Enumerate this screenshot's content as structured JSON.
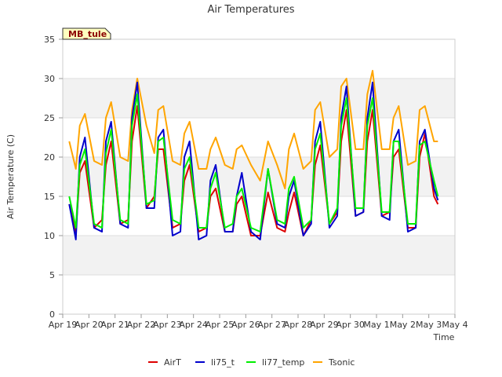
{
  "chart_data": {
    "type": "line",
    "title": "Air Temperatures",
    "xlabel": "Time",
    "ylabel": "Air Temperature (C)",
    "badge": "MB_tule",
    "ylim": [
      0,
      35
    ],
    "yticks": [
      0,
      5,
      10,
      15,
      20,
      25,
      30,
      35
    ],
    "xlim": [
      0,
      15
    ],
    "xticks": [
      {
        "x": 0,
        "label": "Apr 19"
      },
      {
        "x": 1,
        "label": "Apr 20"
      },
      {
        "x": 2,
        "label": "Apr 21"
      },
      {
        "x": 3,
        "label": "Apr 22"
      },
      {
        "x": 4,
        "label": "Apr 23"
      },
      {
        "x": 5,
        "label": "Apr 24"
      },
      {
        "x": 6,
        "label": "Apr 25"
      },
      {
        "x": 7,
        "label": "Apr 26"
      },
      {
        "x": 8,
        "label": "Apr 27"
      },
      {
        "x": 9,
        "label": "Apr 28"
      },
      {
        "x": 10,
        "label": "Apr 29"
      },
      {
        "x": 11,
        "label": "Apr 30"
      },
      {
        "x": 12,
        "label": "May 1"
      },
      {
        "x": 13,
        "label": "May 2"
      },
      {
        "x": 14,
        "label": "May 3"
      },
      {
        "x": 15,
        "label": "May 4"
      }
    ],
    "grid": true,
    "legend_position": "bottom",
    "x_unit": "days since Apr 19",
    "series": [
      {
        "name": "AirT",
        "color": "#dd0000",
        "x": [
          0.25,
          0.5,
          0.65,
          0.85,
          1.2,
          1.5,
          1.65,
          1.85,
          2.2,
          2.5,
          2.65,
          2.85,
          3.2,
          3.5,
          3.65,
          3.85,
          4.2,
          4.5,
          4.65,
          4.85,
          5.2,
          5.5,
          5.65,
          5.85,
          6.2,
          6.5,
          6.65,
          6.85,
          7.2,
          7.55,
          7.85,
          8.2,
          8.5,
          8.65,
          8.85,
          9.2,
          9.5,
          9.65,
          9.85,
          10.2,
          10.5,
          10.65,
          10.85,
          11.2,
          11.5,
          11.65,
          11.85,
          12.2,
          12.5,
          12.65,
          12.85,
          13.2,
          13.5,
          13.65,
          13.85,
          14.2,
          14.35
        ],
        "y": [
          14,
          10.5,
          18,
          19.5,
          11,
          12,
          19,
          22,
          11.5,
          12,
          22,
          26.5,
          13.5,
          15,
          21,
          21,
          11,
          11.5,
          17,
          19,
          10.5,
          11,
          15,
          16,
          10.5,
          10.5,
          14,
          15,
          10,
          10,
          15.5,
          11,
          10.5,
          13,
          15.5,
          10,
          12,
          19,
          21.5,
          11.5,
          13,
          22,
          26,
          12.5,
          13,
          22,
          26,
          12.5,
          13,
          20,
          21,
          11,
          11,
          20,
          23,
          15,
          14
        ]
      },
      {
        "name": "li75_t",
        "color": "#0000cc",
        "x": [
          0.25,
          0.5,
          0.65,
          0.85,
          1.2,
          1.5,
          1.65,
          1.85,
          2.2,
          2.5,
          2.65,
          2.85,
          3.2,
          3.5,
          3.65,
          3.85,
          4.2,
          4.5,
          4.65,
          4.85,
          5.2,
          5.5,
          5.65,
          5.85,
          6.2,
          6.5,
          6.65,
          6.85,
          7.2,
          7.55,
          7.85,
          8.2,
          8.5,
          8.65,
          8.85,
          9.2,
          9.5,
          9.65,
          9.85,
          10.2,
          10.5,
          10.65,
          10.85,
          11.2,
          11.5,
          11.65,
          11.85,
          12.2,
          12.5,
          12.65,
          12.85,
          13.2,
          13.5,
          13.65,
          13.85,
          14.2,
          14.35
        ],
        "y": [
          14,
          9.5,
          20,
          22.5,
          11,
          10.5,
          22,
          24.5,
          11.5,
          11,
          25,
          29.5,
          13.5,
          13.5,
          22.5,
          23.5,
          10,
          10.5,
          20,
          22,
          9.5,
          10,
          17,
          19,
          10.5,
          10.5,
          15,
          18,
          10.5,
          9.5,
          18.5,
          11.5,
          11,
          15,
          17,
          10,
          11.5,
          22,
          24.5,
          11,
          12.5,
          25,
          29,
          12.5,
          13,
          25,
          29.5,
          12.5,
          12,
          22,
          23.5,
          10.5,
          11,
          22,
          23.5,
          16,
          14.5
        ]
      },
      {
        "name": "li77_temp",
        "color": "#00ee00",
        "x": [
          0.25,
          0.5,
          0.65,
          0.85,
          1.2,
          1.5,
          1.65,
          1.85,
          2.2,
          2.5,
          2.65,
          2.85,
          3.2,
          3.5,
          3.65,
          3.85,
          4.2,
          4.5,
          4.65,
          4.85,
          5.2,
          5.5,
          5.65,
          5.85,
          6.2,
          6.5,
          6.65,
          6.85,
          7.2,
          7.55,
          7.85,
          8.2,
          8.5,
          8.65,
          8.85,
          9.2,
          9.5,
          9.65,
          9.85,
          10.2,
          10.5,
          10.65,
          10.85,
          11.2,
          11.5,
          11.65,
          11.85,
          12.2,
          12.5,
          12.65,
          12.85,
          13.2,
          13.5,
          13.65,
          13.85,
          14.2,
          14.35
        ],
        "y": [
          15,
          11,
          19,
          21,
          11.5,
          11,
          20.5,
          23.5,
          12,
          11.5,
          24,
          28,
          14,
          14.5,
          22,
          22.5,
          12,
          11.5,
          18.5,
          20,
          11,
          11,
          16,
          18,
          11,
          11.5,
          15,
          16,
          11,
          10.5,
          18.5,
          12,
          11.5,
          16,
          17.5,
          11,
          12,
          21,
          23,
          11.5,
          13.5,
          24,
          27.5,
          13.5,
          13.5,
          24,
          27.5,
          13,
          13,
          22,
          22,
          11.5,
          11.5,
          21.5,
          22,
          17,
          15
        ]
      },
      {
        "name": "Tsonic",
        "color": "#ffa500",
        "x": [
          0.25,
          0.5,
          0.65,
          0.85,
          1.2,
          1.5,
          1.65,
          1.85,
          2.2,
          2.5,
          2.65,
          2.85,
          3.2,
          3.5,
          3.65,
          3.85,
          4.2,
          4.5,
          4.65,
          4.85,
          5.2,
          5.5,
          5.65,
          5.85,
          6.2,
          6.5,
          6.65,
          6.85,
          7.2,
          7.55,
          7.85,
          8.2,
          8.5,
          8.65,
          8.85,
          9.2,
          9.5,
          9.65,
          9.85,
          10.2,
          10.5,
          10.65,
          10.85,
          11.2,
          11.5,
          11.65,
          11.85,
          12.2,
          12.5,
          12.65,
          12.85,
          13.2,
          13.5,
          13.65,
          13.85,
          14.2,
          14.35
        ],
        "y": [
          22,
          18.5,
          24,
          25.5,
          19.5,
          19,
          25,
          27,
          20,
          19.5,
          26,
          30,
          24,
          20.5,
          26,
          26.5,
          19.5,
          19,
          23,
          24.5,
          18.5,
          18.5,
          21,
          22.5,
          19,
          18.5,
          21,
          21.5,
          19,
          17,
          22,
          19,
          16,
          21,
          23,
          18.5,
          19.5,
          26,
          27,
          20,
          21,
          29,
          30,
          21,
          21,
          28,
          31,
          21,
          21,
          25,
          26.5,
          19,
          19.5,
          26,
          26.5,
          22,
          22
        ]
      }
    ]
  }
}
